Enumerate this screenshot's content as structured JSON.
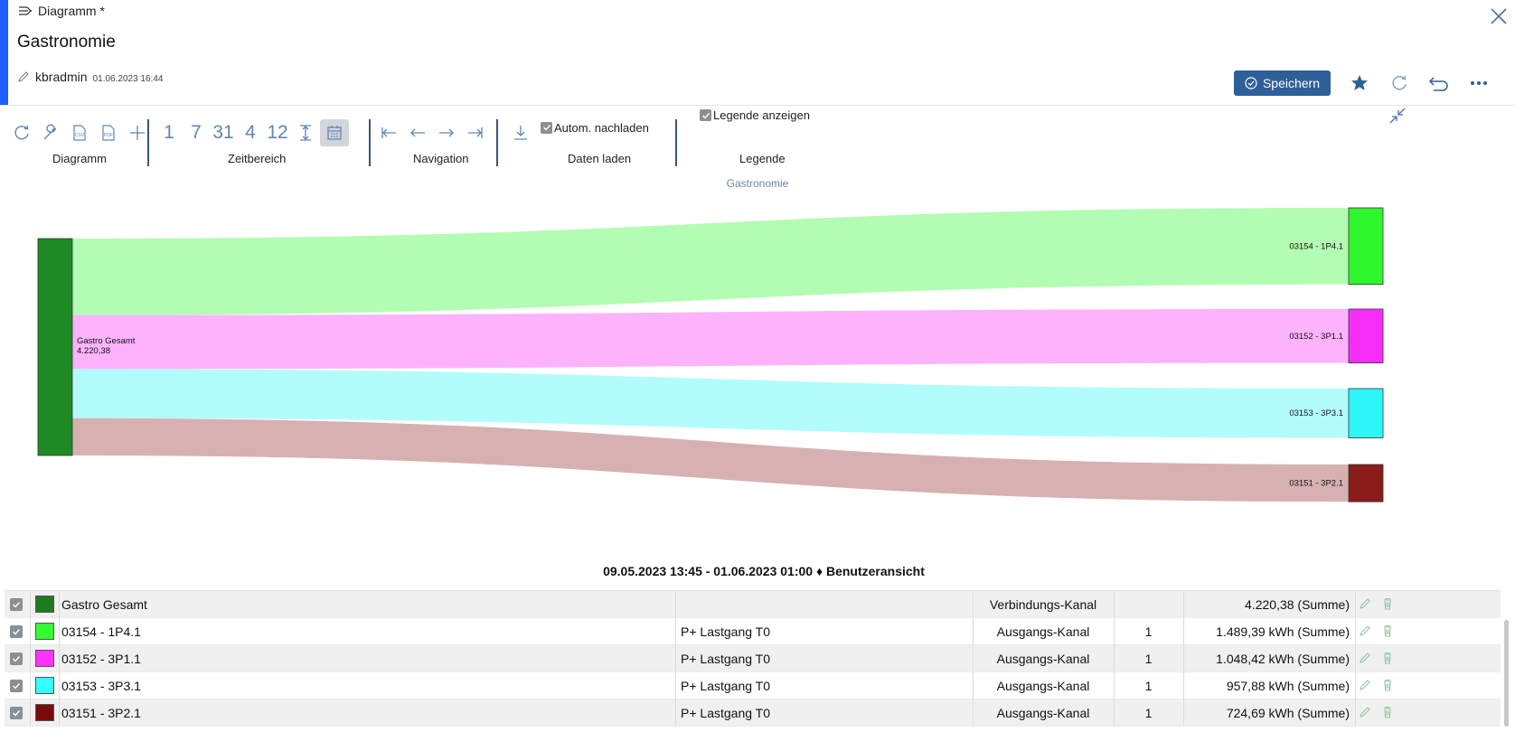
{
  "window": {
    "title": "Diagramm *"
  },
  "page": {
    "title": "Gastronomie",
    "user": "kbradmin",
    "timestamp": "01.06.2023 16:44"
  },
  "actions": {
    "save_label": "Speichern"
  },
  "toolbar": {
    "groups": {
      "diagramm": "Diagramm",
      "zeitbereich": "Zeitbereich",
      "navigation": "Navigation",
      "daten": "Daten laden",
      "legende": "Legende"
    },
    "time_buttons": [
      "1",
      "7",
      "31",
      "4",
      "12"
    ],
    "autoload_label": "Autom. nachladen",
    "legend_label": "Legende anzeigen"
  },
  "chart_data": {
    "type": "sankey",
    "title": "Gastronomie",
    "source": {
      "name": "Gastro Gesamt",
      "value_label": "4.220,38",
      "value": 4220.38,
      "color": "#1e8a24"
    },
    "targets": [
      {
        "name": "03154 - 1P4.1",
        "value": 1489.39,
        "color": "#2ef72e",
        "link_color": "#b3fcb3"
      },
      {
        "name": "03152 - 3P1.1",
        "value": 1048.42,
        "color": "#f72ef7",
        "link_color": "#fcb3fc"
      },
      {
        "name": "03153 - 3P3.1",
        "value": 957.88,
        "color": "#2ef7f7",
        "link_color": "#b3fcfc"
      },
      {
        "name": "03151 - 3P2.1",
        "value": 724.69,
        "color": "#8a1c1c",
        "link_color": "#d7b1b1"
      }
    ]
  },
  "range_label": "09.05.2023 13:45 - 01.06.2023 01:00 ♦ Benutzeransicht",
  "table": {
    "rows": [
      {
        "name": "Gastro Gesamt",
        "color": "#1e7a1e",
        "type": "",
        "kanal": "Verbindungs-Kanal",
        "factor": "",
        "sum": "4.220,38 (Summe)"
      },
      {
        "name": "03154 - 1P4.1",
        "color": "#33ff33",
        "type": "P+ Lastgang T0",
        "kanal": "Ausgangs-Kanal",
        "factor": "1",
        "sum": "1.489,39 kWh (Summe)"
      },
      {
        "name": "03152 - 3P1.1",
        "color": "#ff33ff",
        "type": "P+ Lastgang T0",
        "kanal": "Ausgangs-Kanal",
        "factor": "1",
        "sum": "1.048,42 kWh (Summe)"
      },
      {
        "name": "03153 - 3P3.1",
        "color": "#33ffff",
        "type": "P+ Lastgang T0",
        "kanal": "Ausgangs-Kanal",
        "factor": "1",
        "sum": "957,88 kWh (Summe)"
      },
      {
        "name": "03151 - 3P2.1",
        "color": "#7a0a0a",
        "type": "P+ Lastgang T0",
        "kanal": "Ausgangs-Kanal",
        "factor": "1",
        "sum": "724,69 kWh (Summe)"
      }
    ]
  }
}
